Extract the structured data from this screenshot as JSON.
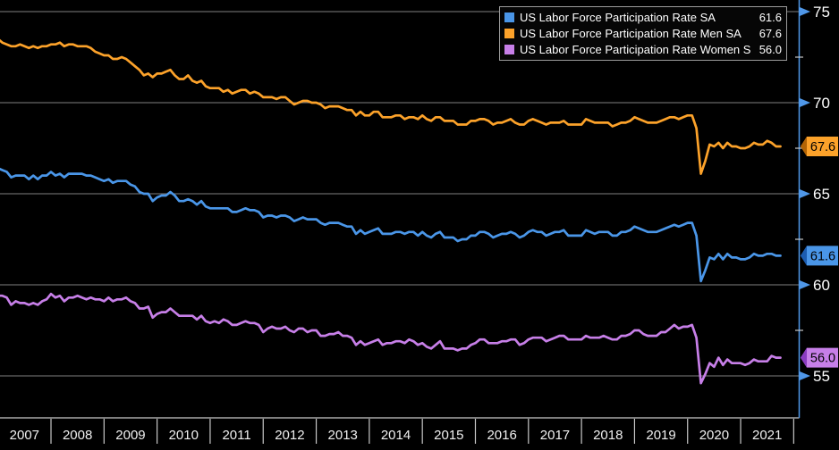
{
  "chart_data": {
    "type": "line",
    "title": "",
    "grid": "horizontal",
    "legend_position": "top-right",
    "x_start_year": 2007,
    "x_ticks": [
      "2007",
      "2008",
      "2009",
      "2010",
      "2011",
      "2012",
      "2013",
      "2014",
      "2015",
      "2016",
      "2017",
      "2018",
      "2019",
      "2020",
      "2021"
    ],
    "y_ticks": [
      75,
      70,
      65,
      60,
      55
    ],
    "y_minor_ticks": [
      72.5,
      67.5,
      62.5,
      57.5
    ],
    "ylim": [
      55,
      75
    ],
    "axis_color": "#4f97e8",
    "grid_color": "#7f7f7f",
    "frame_color": "#c9c9c9",
    "tick_label_color": "#ffffff",
    "series": [
      {
        "name": "US Labor Force Participation Rate SA",
        "badge": "61.6",
        "color": "#4a96e8",
        "tip_color": "#1c5cb0",
        "values": [
          66.4,
          66.3,
          66.2,
          65.9,
          66.0,
          66.0,
          66.0,
          65.8,
          66.0,
          65.8,
          66.0,
          66.0,
          66.2,
          66.0,
          66.1,
          65.9,
          66.1,
          66.1,
          66.1,
          66.1,
          66.0,
          66.0,
          65.9,
          65.8,
          65.7,
          65.8,
          65.6,
          65.7,
          65.7,
          65.7,
          65.5,
          65.4,
          65.1,
          65.0,
          65.0,
          64.6,
          64.8,
          64.9,
          64.9,
          65.1,
          64.9,
          64.6,
          64.6,
          64.7,
          64.6,
          64.4,
          64.6,
          64.3,
          64.2,
          64.2,
          64.2,
          64.2,
          64.2,
          64.0,
          64.0,
          64.1,
          64.2,
          64.1,
          64.1,
          64.0,
          63.7,
          63.8,
          63.8,
          63.7,
          63.8,
          63.8,
          63.7,
          63.5,
          63.6,
          63.7,
          63.6,
          63.6,
          63.6,
          63.4,
          63.3,
          63.4,
          63.4,
          63.4,
          63.3,
          63.2,
          63.2,
          62.8,
          63.0,
          62.8,
          62.9,
          63.0,
          63.1,
          62.8,
          62.8,
          62.8,
          62.9,
          62.9,
          62.8,
          62.9,
          62.9,
          62.7,
          62.9,
          62.7,
          62.6,
          62.8,
          62.9,
          62.6,
          62.6,
          62.6,
          62.4,
          62.5,
          62.5,
          62.7,
          62.7,
          62.9,
          62.9,
          62.8,
          62.6,
          62.7,
          62.8,
          62.8,
          62.9,
          62.8,
          62.6,
          62.7,
          62.9,
          63.0,
          62.9,
          62.9,
          62.7,
          62.8,
          62.9,
          62.9,
          63.0,
          62.7,
          62.7,
          62.7,
          62.7,
          63.0,
          62.9,
          62.8,
          62.9,
          62.9,
          62.9,
          62.7,
          62.7,
          62.9,
          62.9,
          63.0,
          63.2,
          63.1,
          63.0,
          62.9,
          62.9,
          62.9,
          63.0,
          63.1,
          63.2,
          63.3,
          63.2,
          63.3,
          63.4,
          63.4,
          62.7,
          60.2,
          60.8,
          61.5,
          61.4,
          61.7,
          61.4,
          61.7,
          61.5,
          61.5,
          61.4,
          61.4,
          61.5,
          61.7,
          61.6,
          61.6,
          61.7,
          61.7,
          61.6,
          61.6
        ]
      },
      {
        "name": "US Labor Force Participation Rate Men SA",
        "badge": "67.6",
        "color": "#fca22a",
        "tip_color": "#b36405",
        "values": [
          73.5,
          73.3,
          73.2,
          73.1,
          73.1,
          73.2,
          73.1,
          73.0,
          73.1,
          73.0,
          73.1,
          73.1,
          73.2,
          73.2,
          73.3,
          73.1,
          73.2,
          73.2,
          73.1,
          73.1,
          73.1,
          73.0,
          72.8,
          72.7,
          72.6,
          72.6,
          72.4,
          72.4,
          72.5,
          72.4,
          72.2,
          72.0,
          71.8,
          71.5,
          71.6,
          71.4,
          71.6,
          71.6,
          71.7,
          71.8,
          71.5,
          71.3,
          71.3,
          71.5,
          71.2,
          71.1,
          71.2,
          70.9,
          70.8,
          70.8,
          70.8,
          70.6,
          70.7,
          70.5,
          70.6,
          70.7,
          70.7,
          70.5,
          70.6,
          70.5,
          70.3,
          70.3,
          70.3,
          70.2,
          70.3,
          70.3,
          70.1,
          69.9,
          70.0,
          70.1,
          70.1,
          70.0,
          70.0,
          69.9,
          69.7,
          69.8,
          69.8,
          69.8,
          69.7,
          69.6,
          69.6,
          69.3,
          69.5,
          69.3,
          69.3,
          69.5,
          69.5,
          69.2,
          69.2,
          69.2,
          69.3,
          69.3,
          69.1,
          69.2,
          69.2,
          69.1,
          69.3,
          69.1,
          69.0,
          69.2,
          69.2,
          69.0,
          69.0,
          69.0,
          68.8,
          68.8,
          68.8,
          69.0,
          69.0,
          69.1,
          69.1,
          69.0,
          68.8,
          68.9,
          68.9,
          69.0,
          69.1,
          68.9,
          68.8,
          68.8,
          69.0,
          69.1,
          69.0,
          68.9,
          68.8,
          68.9,
          68.9,
          68.9,
          69.0,
          68.8,
          68.8,
          68.8,
          68.8,
          69.1,
          69.0,
          68.9,
          68.9,
          68.9,
          68.9,
          68.7,
          68.8,
          68.9,
          68.9,
          69.0,
          69.2,
          69.1,
          69.0,
          68.9,
          68.9,
          68.9,
          69.0,
          69.1,
          69.2,
          69.2,
          69.1,
          69.2,
          69.3,
          69.3,
          68.6,
          66.1,
          66.8,
          67.7,
          67.6,
          67.8,
          67.5,
          67.8,
          67.6,
          67.6,
          67.5,
          67.5,
          67.6,
          67.8,
          67.7,
          67.7,
          67.9,
          67.8,
          67.6,
          67.6
        ]
      },
      {
        "name": "US Labor Force Participation Rate Women SA",
        "badge": "56.0",
        "color": "#c77fe8",
        "tip_color": "#8a3cc0",
        "values": [
          59.4,
          59.4,
          59.3,
          58.9,
          59.1,
          59.0,
          59.0,
          58.9,
          59.0,
          58.9,
          59.1,
          59.2,
          59.5,
          59.3,
          59.4,
          59.1,
          59.3,
          59.3,
          59.4,
          59.3,
          59.2,
          59.3,
          59.2,
          59.2,
          59.1,
          59.3,
          59.1,
          59.2,
          59.2,
          59.3,
          59.1,
          59.0,
          58.7,
          58.7,
          58.8,
          58.2,
          58.4,
          58.5,
          58.5,
          58.7,
          58.5,
          58.3,
          58.3,
          58.3,
          58.3,
          58.1,
          58.3,
          58.0,
          57.9,
          58.0,
          57.9,
          58.1,
          58.0,
          57.8,
          57.8,
          57.9,
          58.0,
          57.9,
          57.9,
          57.8,
          57.4,
          57.6,
          57.7,
          57.6,
          57.6,
          57.7,
          57.5,
          57.4,
          57.6,
          57.6,
          57.4,
          57.5,
          57.5,
          57.2,
          57.2,
          57.3,
          57.3,
          57.4,
          57.2,
          57.2,
          57.1,
          56.7,
          56.9,
          56.7,
          56.8,
          56.9,
          57.0,
          56.7,
          56.8,
          56.8,
          56.9,
          56.9,
          56.8,
          57.0,
          56.9,
          56.7,
          56.8,
          56.6,
          56.5,
          56.7,
          56.9,
          56.5,
          56.5,
          56.5,
          56.4,
          56.5,
          56.5,
          56.7,
          56.8,
          57.0,
          57.0,
          56.8,
          56.8,
          56.8,
          56.9,
          56.9,
          57.0,
          57.0,
          56.7,
          56.8,
          57.0,
          57.1,
          57.1,
          57.1,
          56.9,
          57.0,
          57.1,
          57.2,
          57.2,
          57.0,
          57.0,
          57.0,
          57.0,
          57.2,
          57.1,
          57.1,
          57.1,
          57.2,
          57.1,
          57.0,
          57.0,
          57.2,
          57.2,
          57.3,
          57.5,
          57.5,
          57.3,
          57.2,
          57.2,
          57.2,
          57.4,
          57.4,
          57.6,
          57.8,
          57.6,
          57.7,
          57.7,
          57.8,
          57.1,
          54.6,
          55.1,
          55.7,
          55.5,
          56.0,
          55.6,
          55.9,
          55.7,
          55.7,
          55.7,
          55.6,
          55.7,
          55.9,
          55.8,
          55.8,
          55.8,
          56.1,
          56.0,
          56.0
        ]
      }
    ]
  },
  "legend": {
    "rows": [
      {
        "label": "US Labor Force Participation Rate SA",
        "value": "61.6"
      },
      {
        "label": "US Labor Force Participation Rate Men SA",
        "value": "67.6"
      },
      {
        "label": "US Labor Force Participation Rate Women SA",
        "value": "56.0"
      }
    ]
  }
}
